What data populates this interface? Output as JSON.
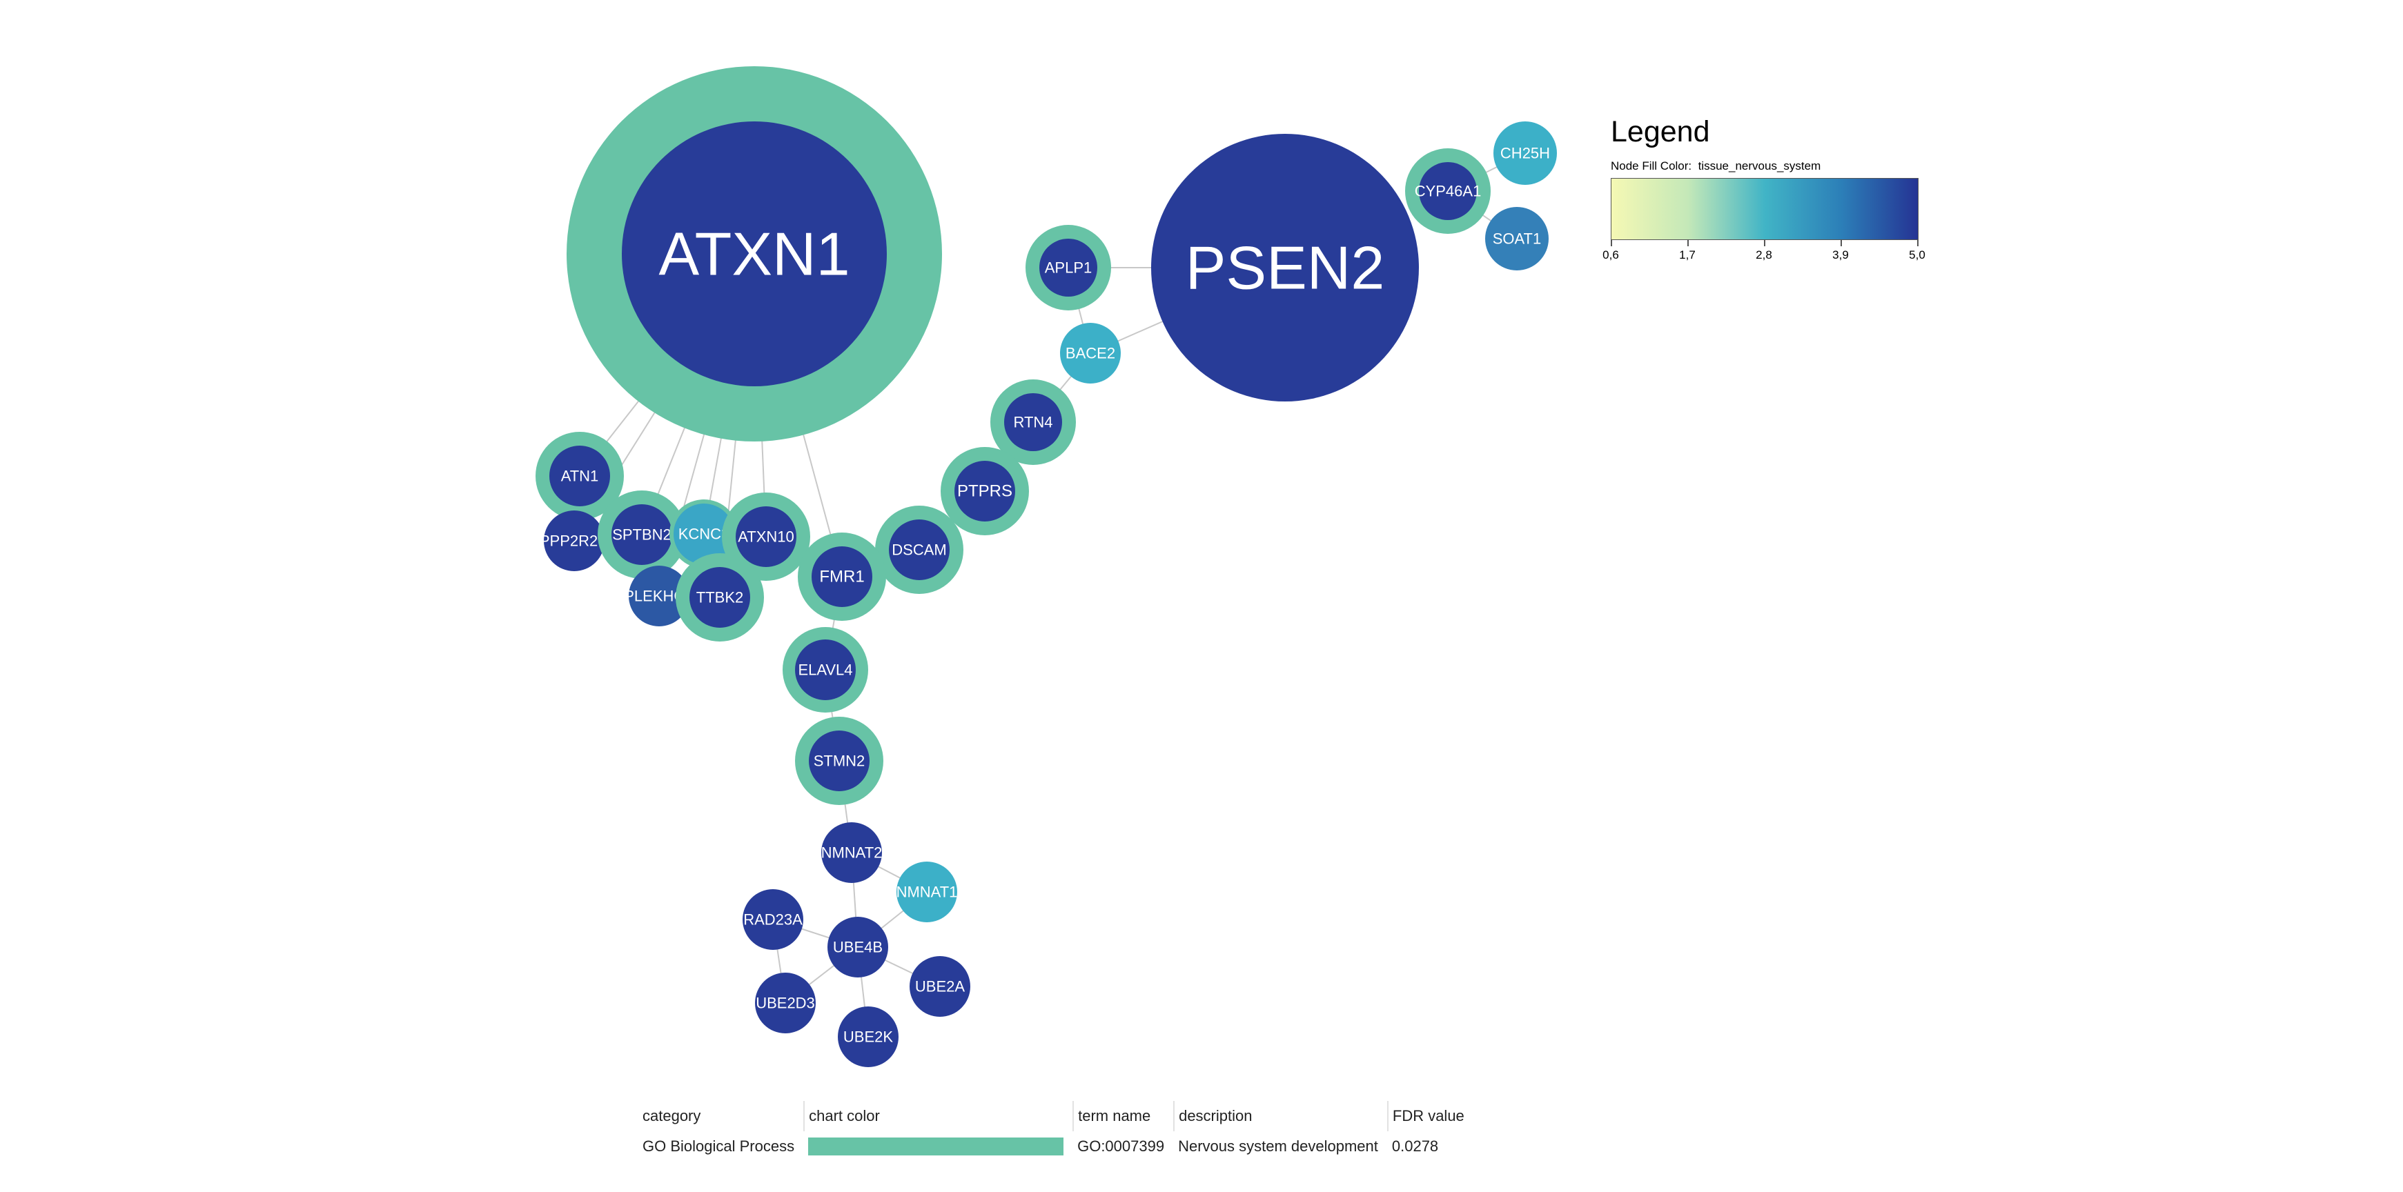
{
  "colors": {
    "ring": "#67c3a6",
    "edge": "#c8c8c8",
    "label": "#ffffff",
    "gradient": [
      "#f5f8b4",
      "#c4e8b8",
      "#41b4c6",
      "#2c7fb8",
      "#253494"
    ]
  },
  "nodes": [
    {
      "id": "ATXN1",
      "label": "ATXN1",
      "fill": "#283c98",
      "ring": true
    },
    {
      "id": "PSEN2",
      "label": "PSEN2",
      "fill": "#283c98",
      "ring": false
    },
    {
      "id": "CYP46A1",
      "label": "CYP46A1",
      "fill": "#283c98",
      "ring": true
    },
    {
      "id": "CH25H",
      "label": "CH25H",
      "fill": "#3cb0c8",
      "ring": false
    },
    {
      "id": "SOAT1",
      "label": "SOAT1",
      "fill": "#3480b8",
      "ring": false
    },
    {
      "id": "APLP1",
      "label": "APLP1",
      "fill": "#283c98",
      "ring": true
    },
    {
      "id": "BACE2",
      "label": "BACE2",
      "fill": "#3cb0c8",
      "ring": false
    },
    {
      "id": "RTN4",
      "label": "RTN4",
      "fill": "#283c98",
      "ring": true
    },
    {
      "id": "PTPRS",
      "label": "PTPRS",
      "fill": "#283c98",
      "ring": true
    },
    {
      "id": "DSCAM",
      "label": "DSCAM",
      "fill": "#283c98",
      "ring": true
    },
    {
      "id": "ATN1",
      "label": "ATN1",
      "fill": "#283c98",
      "ring": true
    },
    {
      "id": "PPP2R2C",
      "label": "PPP2R2C",
      "fill": "#283c98",
      "ring": false
    },
    {
      "id": "SPTBN2",
      "label": "SPTBN2",
      "fill": "#283c98",
      "ring": true
    },
    {
      "id": "KCNC3",
      "label": "KCNC3",
      "fill": "#3aa6c6",
      "ring": true
    },
    {
      "id": "ATXN10",
      "label": "ATXN10",
      "fill": "#283c98",
      "ring": true
    },
    {
      "id": "PLEKHG4",
      "label": "PLEKHG4",
      "fill": "#2c58a4",
      "ring": false
    },
    {
      "id": "TTBK2",
      "label": "TTBK2",
      "fill": "#283c98",
      "ring": true
    },
    {
      "id": "FMR1",
      "label": "FMR1",
      "fill": "#283c98",
      "ring": true
    },
    {
      "id": "ELAVL4",
      "label": "ELAVL4",
      "fill": "#283c98",
      "ring": true
    },
    {
      "id": "STMN2",
      "label": "STMN2",
      "fill": "#283c98",
      "ring": true
    },
    {
      "id": "NMNAT2",
      "label": "NMNAT2",
      "fill": "#283c98",
      "ring": false
    },
    {
      "id": "NMNAT1",
      "label": "NMNAT1",
      "fill": "#3cb0c8",
      "ring": false
    },
    {
      "id": "RAD23A",
      "label": "RAD23A",
      "fill": "#283c98",
      "ring": false
    },
    {
      "id": "UBE4B",
      "label": "UBE4B",
      "fill": "#283c98",
      "ring": false
    },
    {
      "id": "UBE2A",
      "label": "UBE2A",
      "fill": "#283c98",
      "ring": false
    },
    {
      "id": "UBE2D3",
      "label": "UBE2D3",
      "fill": "#283c98",
      "ring": false
    },
    {
      "id": "UBE2K",
      "label": "UBE2K",
      "fill": "#283c98",
      "ring": false
    }
  ],
  "edges": [
    [
      "ATXN1",
      "ATN1"
    ],
    [
      "ATXN1",
      "PPP2R2C"
    ],
    [
      "ATXN1",
      "SPTBN2"
    ],
    [
      "ATXN1",
      "KCNC3"
    ],
    [
      "ATXN1",
      "ATXN10"
    ],
    [
      "ATXN1",
      "TTBK2"
    ],
    [
      "ATXN1",
      "PLEKHG4"
    ],
    [
      "ATXN1",
      "FMR1"
    ],
    [
      "PSEN2",
      "APLP1"
    ],
    [
      "PSEN2",
      "BACE2"
    ],
    [
      "APLP1",
      "BACE2"
    ],
    [
      "BACE2",
      "RTN4"
    ],
    [
      "RTN4",
      "PTPRS"
    ],
    [
      "PTPRS",
      "DSCAM"
    ],
    [
      "DSCAM",
      "FMR1"
    ],
    [
      "FMR1",
      "ELAVL4"
    ],
    [
      "ELAVL4",
      "STMN2"
    ],
    [
      "STMN2",
      "NMNAT2"
    ],
    [
      "NMNAT2",
      "NMNAT1"
    ],
    [
      "NMNAT2",
      "UBE4B"
    ],
    [
      "UBE4B",
      "NMNAT1"
    ],
    [
      "UBE4B",
      "RAD23A"
    ],
    [
      "UBE4B",
      "UBE2A"
    ],
    [
      "UBE4B",
      "UBE2D3"
    ],
    [
      "UBE4B",
      "UBE2K"
    ],
    [
      "RAD23A",
      "UBE2D3"
    ],
    [
      "CYP46A1",
      "CH25H"
    ],
    [
      "CYP46A1",
      "SOAT1"
    ],
    [
      "ATN1",
      "SPTBN2"
    ],
    [
      "SPTBN2",
      "KCNC3"
    ],
    [
      "SPTBN2",
      "PLEKHG4"
    ],
    [
      "PPP2R2C",
      "SPTBN2"
    ]
  ],
  "legend": {
    "title": "Legend",
    "subtitle": "Node Fill Color:  tissue_nervous_system",
    "ticks": [
      "0,6",
      "1,7",
      "2,8",
      "3,9",
      "5,0"
    ]
  },
  "table": {
    "headers": [
      "category",
      "chart color",
      "term name",
      "description",
      "FDR value"
    ],
    "rows": [
      {
        "category": "GO Biological Process",
        "chart_color": "#67c3a6",
        "term_name": "GO:0007399",
        "description": "Nervous system development",
        "fdr": "0.0278"
      }
    ]
  }
}
